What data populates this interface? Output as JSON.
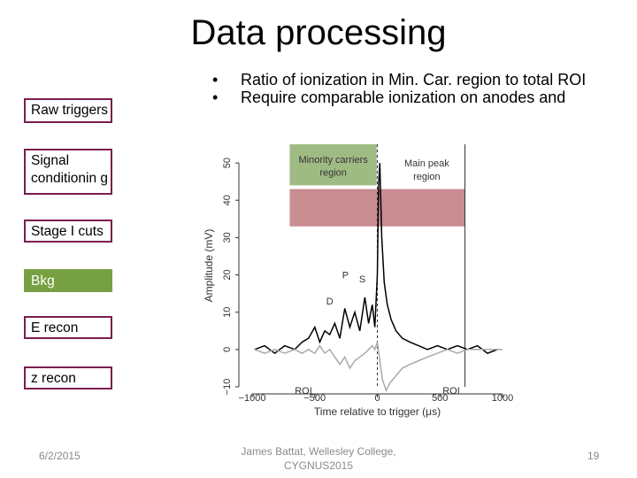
{
  "slide": {
    "title": "Data processing",
    "bullets": [
      "Ratio of ionization in Min. Car. region to total ROI",
      "Require comparable ionization on anodes and"
    ],
    "flow_steps": [
      {
        "label": "Raw triggers",
        "style": "outline"
      },
      {
        "label": "Signal conditionin g",
        "style": "outline"
      },
      {
        "label": "Stage I cuts",
        "style": "outline"
      },
      {
        "label": "Bkg",
        "style": "filled-green"
      },
      {
        "label": "E recon",
        "style": "outline"
      },
      {
        "label": "z recon",
        "style": "outline"
      }
    ],
    "footer": {
      "date": "6/2/2015",
      "author": "James Battat, Wellesley College, CYGNUS2015",
      "page": "19"
    }
  },
  "chart_data": {
    "type": "line",
    "xlabel": "Time relative to trigger (μs)",
    "ylabel": "Amplitude (mV)",
    "xlim": [
      -1000,
      1000
    ],
    "ylim": [
      -10,
      55
    ],
    "xticks": [
      -1000,
      -500,
      0,
      500,
      1000
    ],
    "xtick_labels": [
      "−1000",
      "−500",
      "0",
      "500",
      "1000"
    ],
    "yticks": [
      -10,
      0,
      10,
      20,
      30,
      40,
      50
    ],
    "ytick_labels": [
      "−10",
      "0",
      "10",
      "20",
      "30",
      "40",
      "50"
    ],
    "vlines": [
      {
        "x": 0,
        "style": "dashed"
      },
      {
        "x": 700,
        "style": "solid"
      }
    ],
    "regions": [
      {
        "label": "Minority carriers region",
        "x_range": [
          -700,
          -5
        ],
        "y_range": [
          44,
          55
        ],
        "color": "#9fbb84"
      },
      {
        "label": "Highlight band",
        "x_range": [
          -700,
          700
        ],
        "y_range": [
          33,
          43
        ],
        "color": "#c98d92"
      }
    ],
    "annotations": [
      {
        "text": "Main peak region",
        "x": 395,
        "y": 50
      },
      {
        "text": "P",
        "x": -255,
        "y": 20
      },
      {
        "text": "S",
        "x": -120,
        "y": 19
      },
      {
        "text": "D",
        "x": -380,
        "y": 13
      },
      {
        "text": "ROI",
        "x": -590,
        "y": -11
      },
      {
        "text": "ROI",
        "x": 590,
        "y": -11
      }
    ],
    "series": [
      {
        "name": "black trace",
        "color": "#000",
        "points": [
          [
            -980,
            0
          ],
          [
            -900,
            1
          ],
          [
            -820,
            -1
          ],
          [
            -740,
            1
          ],
          [
            -660,
            0
          ],
          [
            -600,
            2
          ],
          [
            -550,
            3
          ],
          [
            -500,
            6
          ],
          [
            -460,
            2
          ],
          [
            -420,
            5
          ],
          [
            -380,
            4
          ],
          [
            -340,
            7
          ],
          [
            -300,
            3
          ],
          [
            -260,
            11
          ],
          [
            -220,
            6
          ],
          [
            -180,
            10
          ],
          [
            -140,
            5
          ],
          [
            -100,
            14
          ],
          [
            -70,
            7
          ],
          [
            -40,
            12
          ],
          [
            -20,
            6
          ],
          [
            0,
            20
          ],
          [
            10,
            44
          ],
          [
            20,
            50
          ],
          [
            35,
            30
          ],
          [
            55,
            18
          ],
          [
            80,
            12
          ],
          [
            110,
            8
          ],
          [
            150,
            5
          ],
          [
            200,
            3
          ],
          [
            260,
            2
          ],
          [
            330,
            1
          ],
          [
            400,
            0
          ],
          [
            480,
            1
          ],
          [
            560,
            0
          ],
          [
            640,
            1
          ],
          [
            720,
            0
          ],
          [
            800,
            1
          ],
          [
            880,
            -1
          ],
          [
            960,
            0
          ],
          [
            1000,
            0
          ]
        ]
      },
      {
        "name": "gray trace",
        "color": "#aaa",
        "points": [
          [
            -980,
            0
          ],
          [
            -900,
            -1
          ],
          [
            -820,
            0
          ],
          [
            -740,
            -1
          ],
          [
            -660,
            0
          ],
          [
            -600,
            -1
          ],
          [
            -550,
            0
          ],
          [
            -500,
            -1
          ],
          [
            -460,
            1
          ],
          [
            -420,
            -1
          ],
          [
            -380,
            0
          ],
          [
            -340,
            -2
          ],
          [
            -300,
            -4
          ],
          [
            -260,
            -2
          ],
          [
            -220,
            -5
          ],
          [
            -180,
            -3
          ],
          [
            -140,
            -2
          ],
          [
            -100,
            -1
          ],
          [
            -70,
            0
          ],
          [
            -40,
            1
          ],
          [
            -20,
            0
          ],
          [
            0,
            2
          ],
          [
            20,
            -3
          ],
          [
            40,
            -8
          ],
          [
            70,
            -11
          ],
          [
            100,
            -9
          ],
          [
            150,
            -7
          ],
          [
            200,
            -5
          ],
          [
            260,
            -4
          ],
          [
            330,
            -3
          ],
          [
            400,
            -2
          ],
          [
            480,
            -1
          ],
          [
            560,
            0
          ],
          [
            640,
            -1
          ],
          [
            720,
            0
          ],
          [
            800,
            0
          ],
          [
            880,
            0
          ],
          [
            960,
            0
          ],
          [
            1000,
            0
          ]
        ]
      }
    ]
  }
}
